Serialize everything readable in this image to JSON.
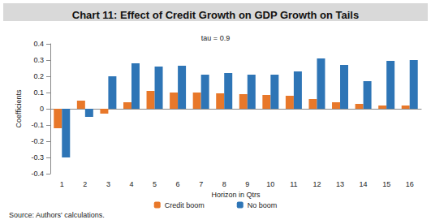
{
  "chart_data": {
    "type": "bar",
    "title": "Chart 11: Effect of Credit Growth on GDP Growth on Tails",
    "subtitle": "tau = 0.9",
    "x_label": "Horizon in Qtrs",
    "y_label": "Coefficients",
    "source": "Source: Authors' calculations.",
    "categories": [
      "1",
      "2",
      "3",
      "4",
      "5",
      "6",
      "7",
      "8",
      "9",
      "10",
      "11",
      "12",
      "13",
      "14",
      "15",
      "16"
    ],
    "series": [
      {
        "name": "Credit boom",
        "color": "#e8782a",
        "values": [
          -0.12,
          0.05,
          -0.03,
          0.04,
          0.11,
          0.1,
          0.1,
          0.095,
          0.09,
          0.085,
          0.08,
          0.06,
          0.04,
          0.03,
          0.02,
          0.02
        ]
      },
      {
        "name": "No boom",
        "color": "#2e75b6",
        "values": [
          -0.3,
          -0.05,
          0.2,
          0.28,
          0.26,
          0.265,
          0.21,
          0.22,
          0.21,
          0.21,
          0.23,
          0.31,
          0.27,
          0.17,
          0.295,
          0.3
        ]
      }
    ],
    "ylim": [
      -0.4,
      0.4
    ],
    "yticks": [
      -0.4,
      -0.3,
      -0.2,
      -0.1,
      0,
      0.1,
      0.2,
      0.3,
      0.4
    ],
    "grid": false,
    "legend": "bottom"
  }
}
